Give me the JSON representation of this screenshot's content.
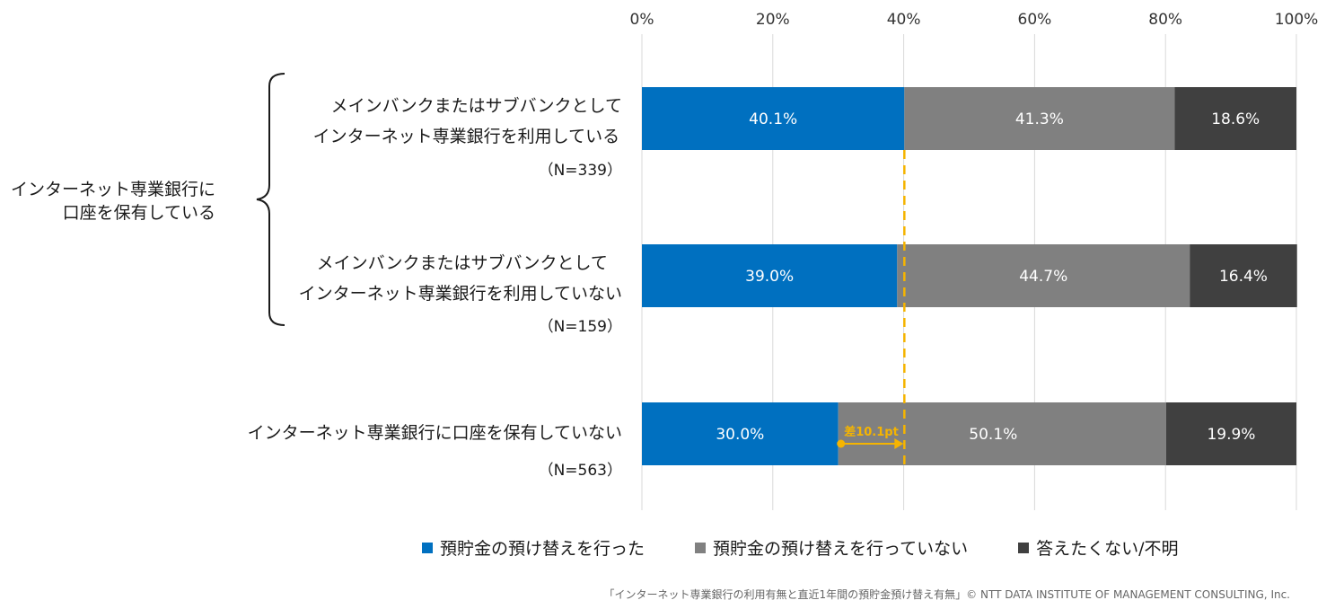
{
  "chart_data": {
    "type": "bar",
    "orientation": "horizontal",
    "stacked": true,
    "percent_stacked": true,
    "xlim": [
      0,
      100
    ],
    "x_ticks": [
      "0%",
      "20%",
      "40%",
      "60%",
      "80%",
      "100%"
    ],
    "grid": true,
    "legend_placement": "bottom",
    "group_label": "インターネット専業銀行に\n口座を保有している",
    "rows": [
      {
        "label": "メインバンクまたはサブバンクとして\nインターネット専業銀行を利用している",
        "n": "（N=339）"
      },
      {
        "label": "メインバンクまたはサブバンクとして\nインターネット専業銀行を利用していない",
        "n": "（N=159）"
      },
      {
        "label": "インターネット専業銀行に口座を保有していない",
        "n": "（N=563）"
      }
    ],
    "series": [
      {
        "name": "預貯金の預け替えを行った",
        "color": "#0070c0",
        "values": [
          40.1,
          39.0,
          30.0
        ],
        "labels": [
          "40.1%",
          "39.0%",
          "30.0%"
        ]
      },
      {
        "name": "預貯金の預け替えを行っていない",
        "color": "#808080",
        "values": [
          41.3,
          44.7,
          50.1
        ],
        "labels": [
          "41.3%",
          "44.7%",
          "50.1%"
        ]
      },
      {
        "name": "答えたくない/不明",
        "color": "#404040",
        "values": [
          18.6,
          16.4,
          19.9
        ],
        "labels": [
          "18.6%",
          "16.4%",
          "19.9%"
        ]
      }
    ],
    "annotation": {
      "text": "差10.1pt",
      "from": 30.0,
      "to": 40.1,
      "row": 2,
      "color": "#f5b400"
    }
  },
  "source": "「インターネット専業銀行の利用有無と直近1年間の預貯金預け替え有無」© NTT DATA INSTITUTE OF MANAGEMENT CONSULTING, Inc."
}
